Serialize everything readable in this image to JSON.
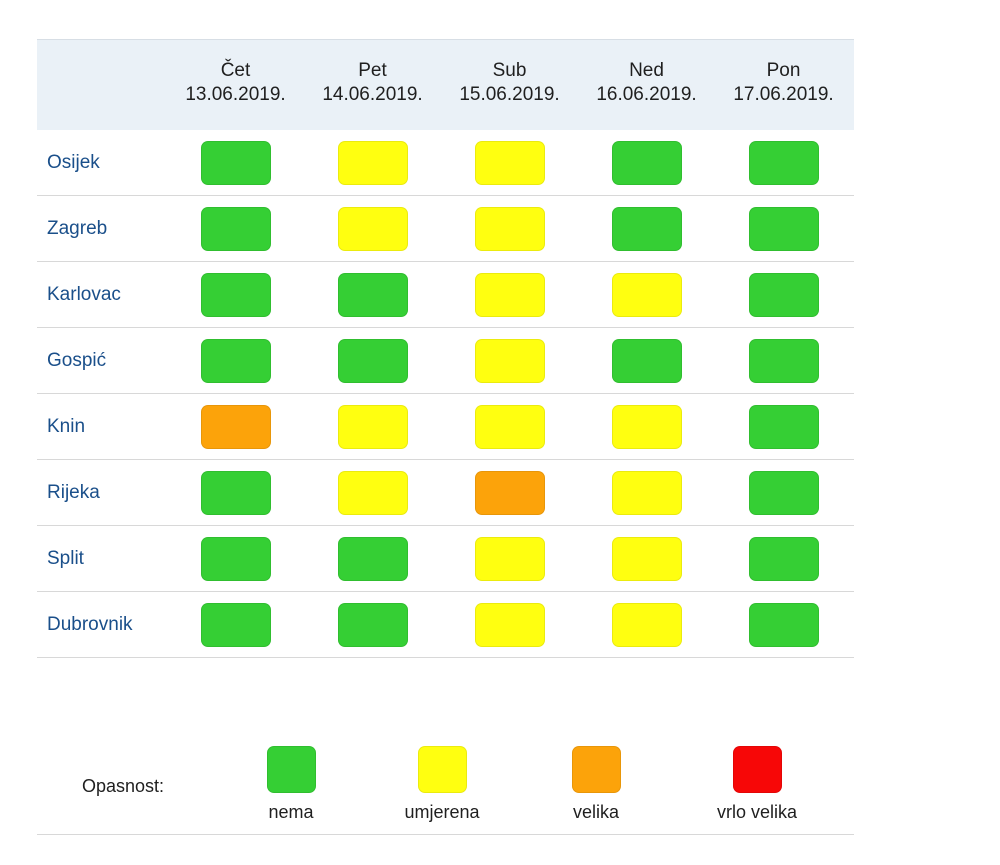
{
  "colors": {
    "nema": "#35cf34",
    "umjerena": "#ffff10",
    "velika": "#fca30a",
    "vrlo_velika": "#f70707"
  },
  "days": [
    {
      "name": "Čet",
      "date": "13.06.2019."
    },
    {
      "name": "Pet",
      "date": "14.06.2019."
    },
    {
      "name": "Sub",
      "date": "15.06.2019."
    },
    {
      "name": "Ned",
      "date": "16.06.2019."
    },
    {
      "name": "Pon",
      "date": "17.06.2019."
    }
  ],
  "rows": [
    {
      "city": "Osijek",
      "levels": [
        "nema",
        "umjerena",
        "umjerena",
        "nema",
        "nema"
      ]
    },
    {
      "city": "Zagreb",
      "levels": [
        "nema",
        "umjerena",
        "umjerena",
        "nema",
        "nema"
      ]
    },
    {
      "city": "Karlovac",
      "levels": [
        "nema",
        "nema",
        "umjerena",
        "umjerena",
        "nema"
      ]
    },
    {
      "city": "Gospić",
      "levels": [
        "nema",
        "nema",
        "umjerena",
        "nema",
        "nema"
      ]
    },
    {
      "city": "Knin",
      "levels": [
        "velika",
        "umjerena",
        "umjerena",
        "umjerena",
        "nema"
      ]
    },
    {
      "city": "Rijeka",
      "levels": [
        "nema",
        "umjerena",
        "velika",
        "umjerena",
        "nema"
      ]
    },
    {
      "city": "Split",
      "levels": [
        "nema",
        "nema",
        "umjerena",
        "umjerena",
        "nema"
      ]
    },
    {
      "city": "Dubrovnik",
      "levels": [
        "nema",
        "nema",
        "umjerena",
        "umjerena",
        "nema"
      ]
    }
  ],
  "legend": {
    "title": "Opasnost:",
    "items": [
      {
        "key": "nema",
        "label": "nema"
      },
      {
        "key": "umjerena",
        "label": "umjerena"
      },
      {
        "key": "velika",
        "label": "velika"
      },
      {
        "key": "vrlo_velika",
        "label": "vrlo velika"
      }
    ]
  }
}
